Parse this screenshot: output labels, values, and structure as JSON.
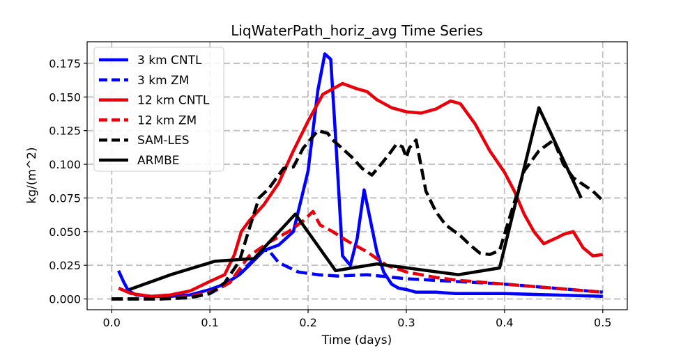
{
  "chart_data": {
    "type": "line",
    "title": "LiqWaterPath_horiz_avg Time Series",
    "xlabel": "Time (days)",
    "ylabel": "kg/(m^2)",
    "xlim": [
      -0.025,
      0.525
    ],
    "ylim": [
      -0.008,
      0.191
    ],
    "xticks": [
      0.0,
      0.1,
      0.2,
      0.3,
      0.4,
      0.5
    ],
    "xtick_labels": [
      "0.0",
      "0.1",
      "0.2",
      "0.3",
      "0.4",
      "0.5"
    ],
    "yticks": [
      0.0,
      0.025,
      0.05,
      0.075,
      0.1,
      0.125,
      0.15,
      0.175
    ],
    "ytick_labels": [
      "0.000",
      "0.025",
      "0.050",
      "0.075",
      "0.100",
      "0.125",
      "0.150",
      "0.175"
    ],
    "grid": true,
    "legend_position": "upper-left",
    "series": [
      {
        "name": "3 km CNTL",
        "color": "#0000ff",
        "style": "solid",
        "x": [
          0.007,
          0.012,
          0.017,
          0.025,
          0.04,
          0.06,
          0.08,
          0.1,
          0.115,
          0.13,
          0.14,
          0.155,
          0.17,
          0.185,
          0.2,
          0.21,
          0.217,
          0.223,
          0.228,
          0.235,
          0.243,
          0.25,
          0.257,
          0.263,
          0.27,
          0.277,
          0.285,
          0.292,
          0.3,
          0.31,
          0.33,
          0.35,
          0.4,
          0.45,
          0.5
        ],
        "y": [
          0.021,
          0.013,
          0.006,
          0.003,
          0.002,
          0.002,
          0.003,
          0.007,
          0.011,
          0.018,
          0.025,
          0.036,
          0.04,
          0.05,
          0.095,
          0.155,
          0.182,
          0.178,
          0.12,
          0.032,
          0.025,
          0.045,
          0.081,
          0.06,
          0.035,
          0.02,
          0.011,
          0.008,
          0.007,
          0.005,
          0.005,
          0.004,
          0.004,
          0.003,
          0.002
        ]
      },
      {
        "name": "3 km ZM",
        "color": "#0000ff",
        "style": "dashed",
        "x": [
          0.0,
          0.02,
          0.05,
          0.08,
          0.1,
          0.12,
          0.14,
          0.155,
          0.16,
          0.17,
          0.19,
          0.21,
          0.23,
          0.26,
          0.3,
          0.35,
          0.4,
          0.45,
          0.5
        ],
        "y": [
          0.0,
          0.0,
          0.0,
          0.001,
          0.004,
          0.012,
          0.026,
          0.036,
          0.036,
          0.027,
          0.02,
          0.018,
          0.017,
          0.018,
          0.015,
          0.013,
          0.011,
          0.008,
          0.005
        ]
      },
      {
        "name": "12 km CNTL",
        "color": "#e8000b",
        "style": "solid",
        "x": [
          0.007,
          0.02,
          0.04,
          0.06,
          0.08,
          0.1,
          0.115,
          0.125,
          0.132,
          0.14,
          0.155,
          0.17,
          0.185,
          0.2,
          0.215,
          0.235,
          0.25,
          0.26,
          0.27,
          0.285,
          0.3,
          0.315,
          0.33,
          0.345,
          0.355,
          0.37,
          0.385,
          0.4,
          0.41,
          0.42,
          0.43,
          0.44,
          0.455,
          0.46,
          0.47,
          0.48,
          0.49,
          0.5
        ],
        "y": [
          0.008,
          0.004,
          0.002,
          0.003,
          0.006,
          0.013,
          0.018,
          0.033,
          0.05,
          0.058,
          0.07,
          0.086,
          0.11,
          0.132,
          0.152,
          0.16,
          0.156,
          0.154,
          0.148,
          0.142,
          0.139,
          0.138,
          0.141,
          0.147,
          0.145,
          0.13,
          0.11,
          0.094,
          0.08,
          0.063,
          0.05,
          0.041,
          0.046,
          0.048,
          0.05,
          0.038,
          0.032,
          0.033
        ]
      },
      {
        "name": "12 km ZM",
        "color": "#e8000b",
        "style": "dashed",
        "x": [
          0.0,
          0.02,
          0.05,
          0.08,
          0.1,
          0.11,
          0.12,
          0.13,
          0.14,
          0.16,
          0.18,
          0.195,
          0.205,
          0.212,
          0.225,
          0.24,
          0.26,
          0.28,
          0.3,
          0.33,
          0.35,
          0.4,
          0.45,
          0.5
        ],
        "y": [
          0.0,
          0.0,
          0.0,
          0.002,
          0.005,
          0.008,
          0.012,
          0.022,
          0.032,
          0.042,
          0.05,
          0.058,
          0.065,
          0.055,
          0.05,
          0.043,
          0.035,
          0.025,
          0.02,
          0.016,
          0.014,
          0.011,
          0.008,
          0.005
        ]
      },
      {
        "name": "SAM-LES",
        "color": "#000000",
        "style": "dashed",
        "x": [
          0.0,
          0.02,
          0.05,
          0.08,
          0.1,
          0.115,
          0.13,
          0.14,
          0.15,
          0.16,
          0.175,
          0.185,
          0.195,
          0.21,
          0.22,
          0.225,
          0.233,
          0.245,
          0.255,
          0.265,
          0.272,
          0.282,
          0.29,
          0.296,
          0.3,
          0.303,
          0.31,
          0.32,
          0.33,
          0.34,
          0.355,
          0.365,
          0.375,
          0.385,
          0.395,
          0.405,
          0.42,
          0.435,
          0.45,
          0.46,
          0.47,
          0.48,
          0.49,
          0.5
        ],
        "y": [
          0.0,
          0.0,
          0.0,
          0.001,
          0.004,
          0.012,
          0.028,
          0.052,
          0.075,
          0.082,
          0.097,
          0.098,
          0.112,
          0.125,
          0.123,
          0.118,
          0.113,
          0.105,
          0.097,
          0.092,
          0.098,
          0.107,
          0.115,
          0.113,
          0.105,
          0.112,
          0.118,
          0.08,
          0.065,
          0.055,
          0.047,
          0.04,
          0.034,
          0.033,
          0.036,
          0.06,
          0.095,
          0.11,
          0.118,
          0.1,
          0.09,
          0.085,
          0.08,
          0.073
        ]
      },
      {
        "name": "ARMBE",
        "color": "#000000",
        "style": "solid",
        "x": [
          0.018,
          0.06,
          0.105,
          0.145,
          0.187,
          0.228,
          0.27,
          0.353,
          0.395,
          0.435,
          0.478
        ],
        "y": [
          0.007,
          0.018,
          0.028,
          0.03,
          0.063,
          0.021,
          0.026,
          0.018,
          0.023,
          0.142,
          0.075
        ]
      }
    ]
  }
}
